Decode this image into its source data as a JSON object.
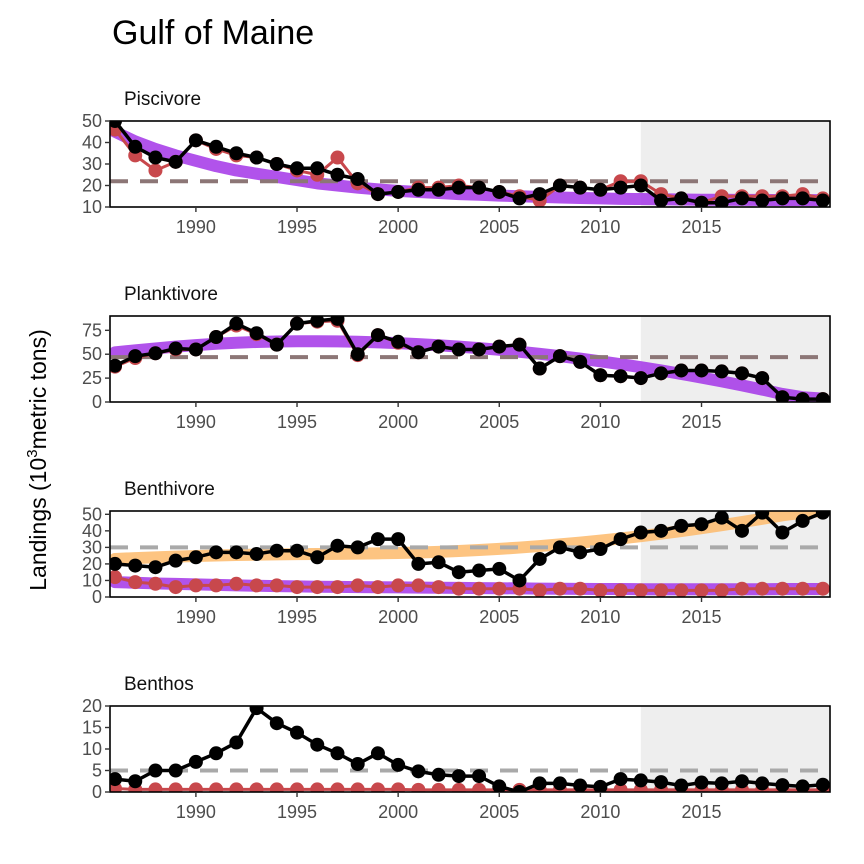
{
  "chart_data": {
    "type": "line",
    "title": "Gulf of Maine",
    "ylabel": "Landings (10^3 metric tons)",
    "ylabel_parts": {
      "pre": "Landings (10",
      "sup": "3",
      "post": "metric tons)"
    },
    "x_range": [
      1986,
      2021
    ],
    "x_ticks": [
      1990,
      1995,
      2000,
      2005,
      2010,
      2015
    ],
    "shaded_from": 2012,
    "colors": {
      "black_series": "#000000",
      "red_series": "#c8484c",
      "purple_trend": "#a335e8",
      "orange_trend": "#fdba6b",
      "reference_line_dark": "#8c7676",
      "reference_line_gray": "#a9a9a9",
      "shading": "#eeeeee"
    },
    "years": [
      1986,
      1987,
      1988,
      1989,
      1990,
      1991,
      1992,
      1993,
      1994,
      1995,
      1996,
      1997,
      1998,
      1999,
      2000,
      2001,
      2002,
      2003,
      2004,
      2005,
      2006,
      2007,
      2008,
      2009,
      2010,
      2011,
      2012,
      2013,
      2014,
      2015,
      2016,
      2017,
      2018,
      2019,
      2020,
      2021
    ],
    "panels": [
      {
        "name": "Piscivore",
        "ylim": [
          10,
          50
        ],
        "yticks": [
          10,
          20,
          30,
          40,
          50
        ],
        "reference_line": 22,
        "reference_style": "dark",
        "black": [
          50,
          38,
          33,
          31,
          41,
          38,
          35,
          33,
          30,
          28,
          28,
          25,
          23,
          16,
          17,
          18,
          18,
          19,
          19,
          17,
          14,
          16,
          20,
          19,
          18,
          19,
          20,
          13,
          14,
          12,
          12,
          14,
          13,
          14,
          14,
          13
        ],
        "red": [
          46,
          34,
          27,
          31,
          41,
          37,
          34,
          33,
          30,
          27,
          25,
          33,
          21,
          16,
          17,
          19,
          19,
          20,
          19,
          17,
          15,
          13,
          20,
          19,
          18,
          22,
          22,
          16,
          14,
          12,
          15,
          15,
          15,
          15,
          16,
          14
        ],
        "trends": [
          {
            "color": "purple",
            "values": [
              45,
              40.5,
              37,
              34,
              31.5,
              29,
              27,
              25.5,
              24,
              22.5,
              21,
              20,
              19,
              18.2,
              17.5,
              17,
              16.5,
              16,
              15.7,
              15.3,
              15,
              14.7,
              14.4,
              14.2,
              14,
              13.8,
              13.7,
              13.6,
              13.5,
              13.4,
              13.4,
              13.3,
              13.3,
              13.2,
              13.2,
              13.2
            ]
          }
        ]
      },
      {
        "name": "Planktivore",
        "ylim": [
          0,
          90
        ],
        "yticks": [
          0,
          25,
          50,
          75
        ],
        "reference_line": 47,
        "reference_style": "dark",
        "black": [
          38,
          48,
          51,
          56,
          55,
          68,
          82,
          72,
          60,
          82,
          85,
          87,
          50,
          70,
          63,
          52,
          58,
          55,
          55,
          58,
          60,
          35,
          48,
          42,
          28,
          27,
          25,
          30,
          33,
          33,
          32,
          30,
          25,
          5,
          3,
          3
        ],
        "red": [
          37,
          46,
          51,
          55,
          55,
          68,
          80,
          71,
          60,
          82,
          84,
          85,
          49,
          70,
          62,
          52,
          58,
          55,
          55,
          58,
          60,
          35,
          48,
          42,
          28,
          27,
          25,
          30,
          33,
          33,
          32,
          30,
          25,
          5,
          3,
          3
        ],
        "trends": [
          {
            "color": "purple",
            "values": [
              52,
              54,
              56,
              58,
              59.5,
              61,
              62,
              62.8,
              63.3,
              63.6,
              63.6,
              63.4,
              63,
              62.4,
              61.6,
              60.6,
              59.4,
              58,
              56.4,
              54.6,
              52.6,
              50.4,
              48,
              45.4,
              42.6,
              39.6,
              36.4,
              33,
              29.4,
              25.6,
              21.6,
              17.4,
              13,
              8.4,
              5,
              3.5
            ]
          }
        ]
      },
      {
        "name": "Benthivore",
        "ylim": [
          0,
          52
        ],
        "yticks": [
          0,
          10,
          20,
          30,
          40,
          50
        ],
        "reference_line": 30,
        "reference_style": "gray",
        "black": [
          20,
          19,
          18,
          22,
          24,
          27,
          27,
          26,
          28,
          28,
          24,
          31,
          30,
          35,
          35,
          20,
          21,
          15,
          16,
          17,
          10,
          23,
          30,
          27,
          29,
          35,
          39,
          40,
          43,
          44,
          48,
          40,
          51,
          39,
          46,
          51
        ],
        "red": [
          12,
          9,
          8,
          6,
          7,
          7,
          8,
          7,
          7,
          6,
          6,
          6,
          7,
          6,
          7,
          7,
          6,
          5,
          5,
          5,
          5,
          4,
          5,
          5,
          4,
          4,
          4,
          4,
          4,
          4,
          4,
          5,
          5,
          5,
          5,
          5
        ],
        "trends": [
          {
            "color": "orange",
            "values": [
              23,
              23.5,
              24,
              24.4,
              24.8,
              25.1,
              25.4,
              25.6,
              25.8,
              25.9,
              26,
              26.1,
              26.2,
              26.4,
              26.6,
              26.9,
              27.3,
              27.8,
              28.4,
              29.1,
              29.9,
              30.8,
              31.8,
              32.9,
              34.1,
              35.4,
              36.8,
              38.3,
              39.9,
              41.6,
              43.4,
              45.3,
              47.3,
              49.4,
              51,
              52
            ]
          },
          {
            "color": "purple",
            "values": [
              9,
              8.6,
              8.2,
              7.9,
              7.6,
              7.3,
              7,
              6.8,
              6.6,
              6.4,
              6.2,
              6.1,
              6,
              5.9,
              5.8,
              5.7,
              5.6,
              5.5,
              5.4,
              5.3,
              5.2,
              5.1,
              5,
              4.9,
              4.8,
              4.8,
              4.7,
              4.7,
              4.7,
              4.7,
              4.7,
              4.7,
              4.7,
              4.8,
              4.8,
              4.8
            ]
          }
        ]
      },
      {
        "name": "Benthos",
        "ylim": [
          0,
          20
        ],
        "yticks": [
          0,
          5,
          10,
          15,
          20
        ],
        "reference_line": 5,
        "reference_style": "gray",
        "black": [
          3,
          2.5,
          5,
          5,
          7,
          9,
          11.5,
          19.5,
          16,
          13.8,
          11,
          9,
          6.5,
          9,
          6.3,
          4.8,
          4,
          3.7,
          3.7,
          1.3,
          0,
          2,
          2,
          1.5,
          1.2,
          3,
          2.7,
          2.3,
          1.5,
          2.2,
          2,
          2.5,
          2,
          1.6,
          1.3,
          1.7
        ],
        "red": [
          0.8,
          0.6,
          0.6,
          0.6,
          0.6,
          0.6,
          0.6,
          0.6,
          0.6,
          0.6,
          0.6,
          0.6,
          0.6,
          0.6,
          0.6,
          0.5,
          0.5,
          0.5,
          0.5,
          0.5,
          0.5,
          0.5,
          0.5,
          0.5,
          0.5,
          0.5,
          0.5,
          0.5,
          0.5,
          0.5,
          0.5,
          0.5,
          0.5,
          0.5,
          0.5,
          0.5
        ],
        "trends": []
      }
    ]
  }
}
